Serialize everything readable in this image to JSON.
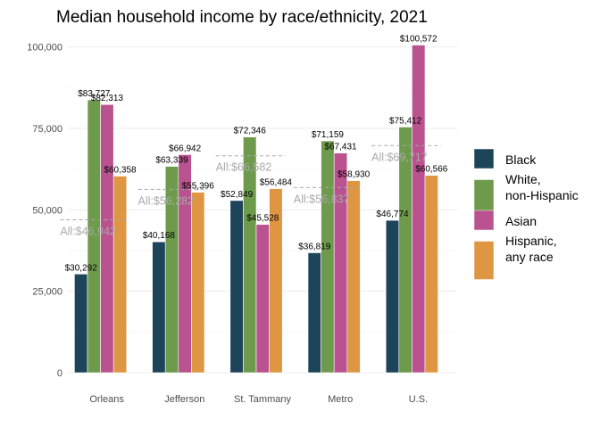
{
  "chart_data": {
    "type": "bar",
    "title": "Median household income by race/ethnicity, 2021",
    "xlabel": "",
    "ylabel": "",
    "ylim": [
      0,
      100000
    ],
    "yticks": [
      0,
      25000,
      50000,
      75000,
      100000
    ],
    "ytick_labels": [
      "0",
      "25,000",
      "50,000",
      "75,000",
      "100,000"
    ],
    "grid": true,
    "legend_position": "right",
    "categories": [
      "Orleans",
      "Jefferson",
      "St. Tammany",
      "Metro",
      "U.S."
    ],
    "series": [
      {
        "name": "Black",
        "color": "#1d4459",
        "values": [
          30292,
          40168,
          52849,
          36819,
          46774
        ],
        "labels": [
          "$30,292",
          "$40,168",
          "$52,849",
          "$36,819",
          "$46,774"
        ]
      },
      {
        "name": "White,\nnon-Hispanic",
        "color": "#6e9a4c",
        "values": [
          83727,
          63339,
          72346,
          71159,
          75412
        ],
        "labels": [
          "$83,727",
          "$63,339",
          "$72,346",
          "$71,159",
          "$75,412"
        ]
      },
      {
        "name": "Asian",
        "color": "#b9528f",
        "values": [
          82313,
          66942,
          45528,
          67431,
          100572
        ],
        "labels": [
          "$82,313",
          "$66,942",
          "$45,528",
          "$67,431",
          "$100,572"
        ]
      },
      {
        "name": "Hispanic,\nany race",
        "color": "#de9643",
        "values": [
          60358,
          55396,
          56484,
          58930,
          60566
        ],
        "labels": [
          "$60,358",
          "$55,396",
          "$56,484",
          "$58,930",
          "$60,566"
        ]
      }
    ],
    "all_values": [
      46942,
      56282,
      66582,
      56837,
      69717
    ],
    "all_labels": [
      "All:$46,942",
      "All:$56,282",
      "All:$66,582",
      "All:$56,837",
      "All:$69,717"
    ],
    "grid_color": "#ebebeb",
    "avg_line_color": "#aaaaaa"
  }
}
